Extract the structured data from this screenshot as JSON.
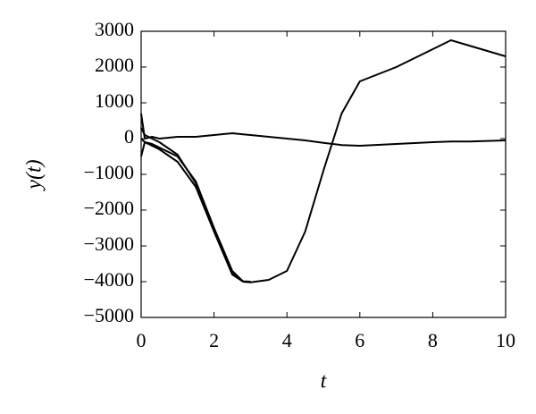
{
  "chart_data": {
    "type": "line",
    "xlabel": "t",
    "ylabel": "y(t)",
    "x": [
      0,
      0.1,
      0.3,
      0.5,
      1,
      1.5,
      2,
      2.5,
      2.8,
      3,
      3.5,
      4,
      4.5,
      5,
      5.5,
      6,
      7,
      8,
      8.5,
      9,
      10
    ],
    "series": [
      {
        "color": "#000000",
        "values": [
          0,
          -100,
          -150,
          -250,
          -500,
          -1200,
          -2500,
          -3700,
          -4000,
          -4020,
          -3950,
          -3700,
          -2600,
          -900,
          700,
          1600,
          2000,
          2500,
          2750,
          2600,
          2300
        ]
      },
      {
        "color": "#000000",
        "values": [
          700,
          0,
          50,
          0,
          50,
          50,
          100,
          150,
          120,
          100,
          50,
          0,
          -50,
          -120,
          -180,
          -200,
          -150,
          -100,
          -80,
          -80,
          -50
        ]
      },
      {
        "color": "#000000",
        "values": [
          -500,
          -100,
          -200,
          -300,
          -650,
          -1350,
          -2600,
          -3800,
          -4000,
          -4010,
          null,
          null,
          null,
          null,
          null,
          null,
          null,
          null,
          null,
          null,
          null
        ]
      },
      {
        "color": "#000000",
        "values": [
          300,
          100,
          0,
          -100,
          -450,
          -1250,
          -2550,
          -3750,
          -3990,
          -4000,
          null,
          null,
          null,
          null,
          null,
          null,
          null,
          null,
          null,
          null,
          null
        ]
      }
    ],
    "xlim": [
      0,
      10
    ],
    "xticks": [
      0,
      2,
      4,
      6,
      8,
      10
    ],
    "ylim": [
      -5000,
      3000
    ],
    "yticks": [
      {
        "value": -5000,
        "label": "−5000"
      },
      {
        "value": -4000,
        "label": "−4000"
      },
      {
        "value": -3000,
        "label": "−3000"
      },
      {
        "value": -2000,
        "label": "−2000"
      },
      {
        "value": -1000,
        "label": "−1000"
      },
      0,
      1000,
      2000,
      3000
    ],
    "grid": false
  }
}
